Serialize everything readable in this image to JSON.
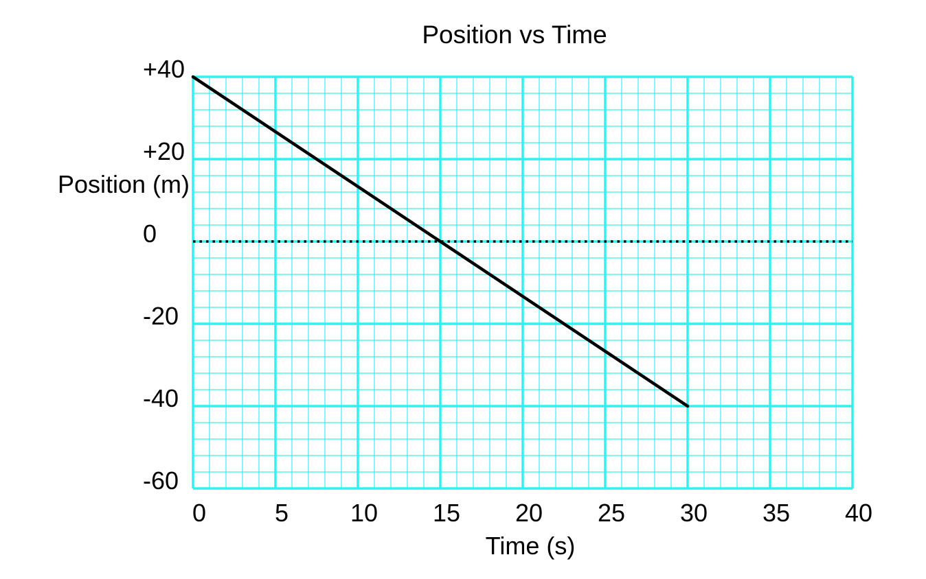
{
  "chart_data": {
    "type": "line",
    "title": "Position vs Time",
    "xlabel": "Time (s)",
    "ylabel": "Position (m)",
    "xlim": [
      0,
      40
    ],
    "ylim": [
      -60,
      40
    ],
    "x_ticks": [
      0,
      5,
      10,
      15,
      20,
      25,
      30,
      35,
      40
    ],
    "x_tick_labels": [
      "0",
      "5",
      "10",
      "15",
      "20",
      "25",
      "30",
      "35",
      "40"
    ],
    "y_ticks": [
      40,
      20,
      0,
      -20,
      -40,
      -60
    ],
    "y_tick_labels": [
      "+40",
      "+20",
      "0",
      "-20",
      "-40",
      "-60"
    ],
    "grid": true,
    "grid_color": "#33f0f0",
    "major_grid_x_step": 5,
    "major_grid_y_step": 20,
    "minor_grid_x_step": 1,
    "minor_grid_y_step": 4,
    "reference_line": {
      "y": 0,
      "style": "dotted",
      "color": "#000000"
    },
    "series": [
      {
        "color": "#000000",
        "x": [
          0,
          30
        ],
        "y": [
          40,
          -40
        ]
      }
    ]
  }
}
